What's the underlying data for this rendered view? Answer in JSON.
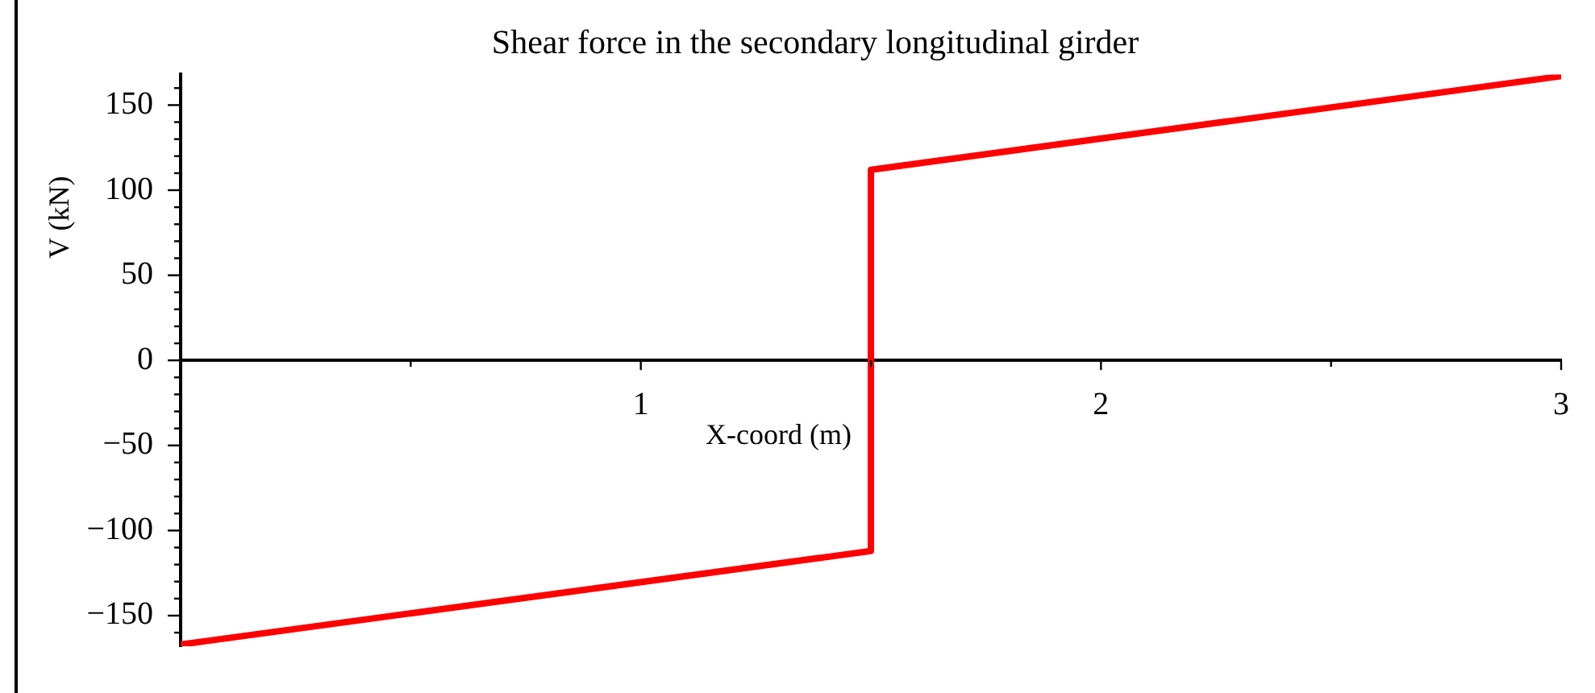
{
  "chart_data": {
    "type": "line",
    "title": "Shear force in the secondary longitudinal girder",
    "xlabel": "X-coord (m)",
    "ylabel": "V (kN)",
    "x": [
      0,
      1.5,
      1.5,
      3
    ],
    "values": [
      -167,
      -112,
      112,
      167
    ],
    "color": "#ff0000",
    "marker": "none",
    "line_style": "solid",
    "xlim": [
      0,
      3
    ],
    "ylim": [
      -168,
      168
    ],
    "xticks": [
      {
        "value": 0.5,
        "label": null
      },
      1,
      {
        "value": 1.5,
        "label": null
      },
      2,
      {
        "value": 2.5,
        "label": null
      },
      3
    ],
    "yticks": [
      {
        "value": -160,
        "label": null
      },
      {
        "value": -150,
        "label": "−150"
      },
      {
        "value": -140,
        "label": null
      },
      {
        "value": -130,
        "label": null
      },
      {
        "value": -120,
        "label": null
      },
      {
        "value": -110,
        "label": null
      },
      {
        "value": -100,
        "label": "−100"
      },
      {
        "value": -90,
        "label": null
      },
      {
        "value": -80,
        "label": null
      },
      {
        "value": -70,
        "label": null
      },
      {
        "value": -60,
        "label": null
      },
      {
        "value": -50,
        "label": "−50"
      },
      {
        "value": -40,
        "label": null
      },
      {
        "value": -30,
        "label": null
      },
      {
        "value": -20,
        "label": null
      },
      {
        "value": -10,
        "label": null
      },
      0,
      {
        "value": 10,
        "label": null
      },
      {
        "value": 20,
        "label": null
      },
      {
        "value": 30,
        "label": null
      },
      {
        "value": 40,
        "label": null
      },
      50,
      {
        "value": 60,
        "label": null
      },
      {
        "value": 70,
        "label": null
      },
      {
        "value": 80,
        "label": null
      },
      {
        "value": 90,
        "label": null
      },
      100,
      {
        "value": 110,
        "label": null
      },
      {
        "value": 120,
        "label": null
      },
      {
        "value": 130,
        "label": null
      },
      {
        "value": 140,
        "label": null
      },
      150,
      {
        "value": 160,
        "label": null
      }
    ]
  }
}
